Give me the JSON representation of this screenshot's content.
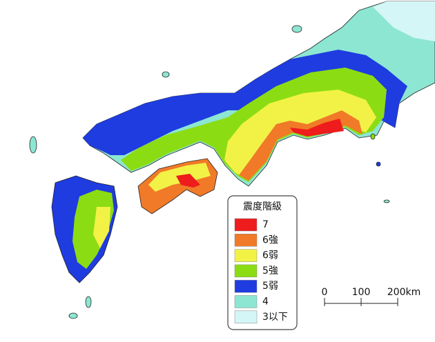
{
  "legend": {
    "title": "震度階級",
    "items": [
      {
        "label": "7",
        "color": "#ee1c1c"
      },
      {
        "label": "6強",
        "color": "#f07a28"
      },
      {
        "label": "6弱",
        "color": "#f2f246"
      },
      {
        "label": "5強",
        "color": "#8cdc14"
      },
      {
        "label": "5弱",
        "color": "#1e3ce0"
      },
      {
        "label": "4",
        "color": "#8ce6d2"
      },
      {
        "label": "3以下",
        "color": "#d4f6f6"
      }
    ]
  },
  "scale_bar": {
    "labels": [
      "0",
      "100",
      "200km"
    ]
  }
}
